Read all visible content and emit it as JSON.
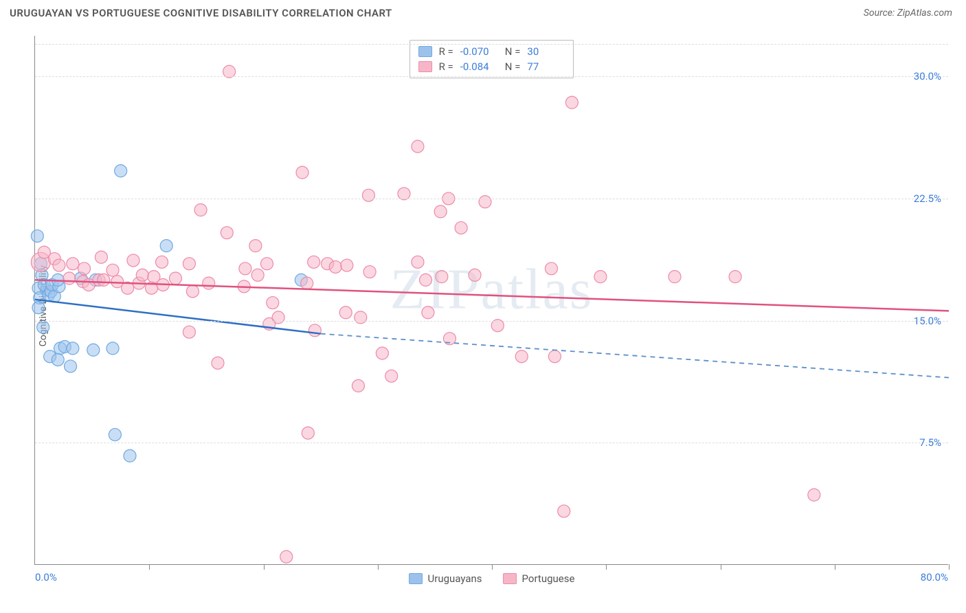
{
  "title": "URUGUAYAN VS PORTUGUESE COGNITIVE DISABILITY CORRELATION CHART",
  "source": "Source: ZipAtlas.com",
  "ylabel": "Cognitive Disability",
  "watermark": "ZIPatlas",
  "chart": {
    "type": "scatter",
    "xlim": [
      0,
      80
    ],
    "ylim": [
      0,
      32.5
    ],
    "x_min_label": "0.0%",
    "x_max_label": "80.0%",
    "xtick_positions": [
      10,
      20,
      30,
      40,
      50,
      60,
      70,
      80
    ],
    "ytick_labels": [
      {
        "value": 7.5,
        "label": "7.5%"
      },
      {
        "value": 15.0,
        "label": "15.0%"
      },
      {
        "value": 22.5,
        "label": "22.5%"
      },
      {
        "value": 30.0,
        "label": "30.0%"
      }
    ],
    "grid_values": [
      7.5,
      15.0,
      22.5,
      30.0,
      32.0
    ],
    "background_color": "#ffffff",
    "grid_color": "#dddddd",
    "axis_color": "#888888",
    "tick_label_color": "#3b7dd8",
    "series": [
      {
        "name": "Uruguayans",
        "fill_color": "#9cc2ec",
        "stroke_color": "#6fa8e0",
        "fill_opacity": 0.55,
        "marker_radius": 9,
        "R": "-0.070",
        "N": "30",
        "trend": {
          "x1": 0,
          "y1": 16.3,
          "x2": 25,
          "y2": 14.2,
          "solid_color": "#2e6fc4",
          "dash_x2": 80,
          "dash_y2": 11.5,
          "dash_color": "#5a8fc9",
          "width": 2.5
        },
        "points": [
          {
            "x": 0.2,
            "y": 20.2
          },
          {
            "x": 0.5,
            "y": 18.5
          },
          {
            "x": 0.6,
            "y": 17.8
          },
          {
            "x": 0.3,
            "y": 17.0
          },
          {
            "x": 1.0,
            "y": 16.9
          },
          {
            "x": 0.8,
            "y": 17.2
          },
          {
            "x": 0.4,
            "y": 16.4
          },
          {
            "x": 1.2,
            "y": 16.6
          },
          {
            "x": 1.4,
            "y": 16.8
          },
          {
            "x": 1.5,
            "y": 17.2
          },
          {
            "x": 1.7,
            "y": 16.5
          },
          {
            "x": 2.1,
            "y": 17.1
          },
          {
            "x": 2.0,
            "y": 17.5
          },
          {
            "x": 0.7,
            "y": 14.6
          },
          {
            "x": 2.2,
            "y": 13.3
          },
          {
            "x": 2.6,
            "y": 13.4
          },
          {
            "x": 3.3,
            "y": 13.3
          },
          {
            "x": 1.3,
            "y": 12.8
          },
          {
            "x": 2.0,
            "y": 12.6
          },
          {
            "x": 3.1,
            "y": 12.2
          },
          {
            "x": 5.1,
            "y": 13.2
          },
          {
            "x": 6.8,
            "y": 13.3
          },
          {
            "x": 7.5,
            "y": 24.2
          },
          {
            "x": 11.5,
            "y": 19.6
          },
          {
            "x": 23.3,
            "y": 17.5
          },
          {
            "x": 5.3,
            "y": 17.5
          },
          {
            "x": 4.0,
            "y": 17.6
          },
          {
            "x": 7.0,
            "y": 8.0
          },
          {
            "x": 8.3,
            "y": 6.7
          },
          {
            "x": 0.3,
            "y": 15.8
          }
        ]
      },
      {
        "name": "Portuguese",
        "fill_color": "#f7b6c8",
        "stroke_color": "#ec8aa8",
        "fill_opacity": 0.55,
        "marker_radius": 9,
        "R": "-0.084",
        "N": "77",
        "trend": {
          "x1": 0,
          "y1": 17.5,
          "x2": 80,
          "y2": 15.6,
          "solid_color": "#e0527e",
          "width": 2.5
        },
        "points": [
          {
            "x": 0.5,
            "y": 18.6,
            "r": 14
          },
          {
            "x": 0.8,
            "y": 19.2
          },
          {
            "x": 1.7,
            "y": 18.8
          },
          {
            "x": 2.1,
            "y": 18.4
          },
          {
            "x": 3.0,
            "y": 17.6
          },
          {
            "x": 3.3,
            "y": 18.5
          },
          {
            "x": 4.2,
            "y": 17.4
          },
          {
            "x": 4.3,
            "y": 18.2
          },
          {
            "x": 4.7,
            "y": 17.2
          },
          {
            "x": 5.6,
            "y": 17.5
          },
          {
            "x": 5.8,
            "y": 18.9
          },
          {
            "x": 6.0,
            "y": 17.5
          },
          {
            "x": 6.8,
            "y": 18.1
          },
          {
            "x": 7.2,
            "y": 17.4
          },
          {
            "x": 8.1,
            "y": 17.0
          },
          {
            "x": 8.6,
            "y": 18.7
          },
          {
            "x": 9.1,
            "y": 17.3
          },
          {
            "x": 9.4,
            "y": 17.8
          },
          {
            "x": 10.4,
            "y": 17.7
          },
          {
            "x": 10.2,
            "y": 17.0
          },
          {
            "x": 11.2,
            "y": 17.2
          },
          {
            "x": 11.1,
            "y": 18.6
          },
          {
            "x": 12.3,
            "y": 17.6
          },
          {
            "x": 13.5,
            "y": 18.5
          },
          {
            "x": 13.8,
            "y": 16.8
          },
          {
            "x": 15.2,
            "y": 17.3
          },
          {
            "x": 14.5,
            "y": 21.8
          },
          {
            "x": 16.8,
            "y": 20.4
          },
          {
            "x": 17.0,
            "y": 30.3
          },
          {
            "x": 18.4,
            "y": 18.2
          },
          {
            "x": 18.3,
            "y": 17.1
          },
          {
            "x": 19.3,
            "y": 19.6
          },
          {
            "x": 19.5,
            "y": 17.8
          },
          {
            "x": 20.3,
            "y": 18.5
          },
          {
            "x": 20.5,
            "y": 14.8
          },
          {
            "x": 21.3,
            "y": 15.2
          },
          {
            "x": 23.4,
            "y": 24.1
          },
          {
            "x": 24.4,
            "y": 18.6
          },
          {
            "x": 24.5,
            "y": 14.4
          },
          {
            "x": 25.6,
            "y": 18.5
          },
          {
            "x": 26.3,
            "y": 18.3
          },
          {
            "x": 27.2,
            "y": 15.5
          },
          {
            "x": 27.3,
            "y": 18.4
          },
          {
            "x": 28.5,
            "y": 15.2
          },
          {
            "x": 28.3,
            "y": 11.0
          },
          {
            "x": 29.2,
            "y": 22.7
          },
          {
            "x": 29.3,
            "y": 18.0
          },
          {
            "x": 30.4,
            "y": 13.0
          },
          {
            "x": 31.2,
            "y": 11.6
          },
          {
            "x": 32.3,
            "y": 22.8
          },
          {
            "x": 33.5,
            "y": 25.7
          },
          {
            "x": 33.5,
            "y": 18.6
          },
          {
            "x": 34.2,
            "y": 17.5
          },
          {
            "x": 34.4,
            "y": 15.5
          },
          {
            "x": 35.5,
            "y": 21.7
          },
          {
            "x": 35.6,
            "y": 17.7
          },
          {
            "x": 36.2,
            "y": 22.5
          },
          {
            "x": 36.3,
            "y": 13.9
          },
          {
            "x": 37.3,
            "y": 20.7
          },
          {
            "x": 38.5,
            "y": 17.8
          },
          {
            "x": 39.4,
            "y": 22.3
          },
          {
            "x": 40.5,
            "y": 14.7
          },
          {
            "x": 42.6,
            "y": 12.8
          },
          {
            "x": 45.2,
            "y": 18.2
          },
          {
            "x": 45.5,
            "y": 12.8
          },
          {
            "x": 47.0,
            "y": 28.4
          },
          {
            "x": 46.3,
            "y": 3.3
          },
          {
            "x": 49.5,
            "y": 17.7
          },
          {
            "x": 56.0,
            "y": 17.7
          },
          {
            "x": 61.3,
            "y": 17.7
          },
          {
            "x": 68.2,
            "y": 4.3
          },
          {
            "x": 23.9,
            "y": 8.1
          },
          {
            "x": 22.0,
            "y": 0.5
          },
          {
            "x": 16.0,
            "y": 12.4
          },
          {
            "x": 13.5,
            "y": 14.3
          },
          {
            "x": 20.8,
            "y": 16.1
          },
          {
            "x": 23.8,
            "y": 17.3
          }
        ]
      }
    ],
    "bottom_legend": [
      {
        "label": "Uruguayans",
        "fill": "#9cc2ec",
        "stroke": "#6fa8e0"
      },
      {
        "label": "Portuguese",
        "fill": "#f7b6c8",
        "stroke": "#ec8aa8"
      }
    ]
  }
}
